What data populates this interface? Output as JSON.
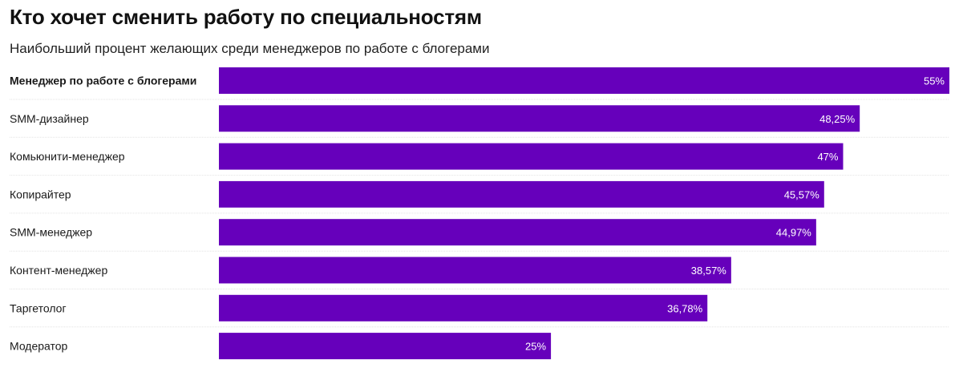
{
  "header": {
    "title": "Кто хочет сменить работу по специальностям",
    "subtitle": "Наибольший процент желающих среди менеджеров по работе с блогерами"
  },
  "colors": {
    "bar": "#6600bb",
    "value_text": "#ffffff",
    "divider": "#e3e3e3"
  },
  "chart_data": {
    "type": "bar",
    "orientation": "horizontal",
    "categories": [
      "Менеджер по работе с блогерами",
      "SMM-дизайнер",
      "Комьюнити-менеджер",
      "Копирайтер",
      "SMM-менеджер",
      "Контент-менеджер",
      "Таргетолог",
      "Модератор"
    ],
    "values": [
      55,
      48.25,
      47,
      45.57,
      44.97,
      38.57,
      36.78,
      25
    ],
    "value_labels": [
      "55%",
      "48,25%",
      "47%",
      "45,57%",
      "44,97%",
      "38,57%",
      "36,78%",
      "25%"
    ],
    "highlighted_category_index": 0,
    "xlim": [
      0,
      55
    ],
    "grid": false,
    "legend": "none"
  }
}
